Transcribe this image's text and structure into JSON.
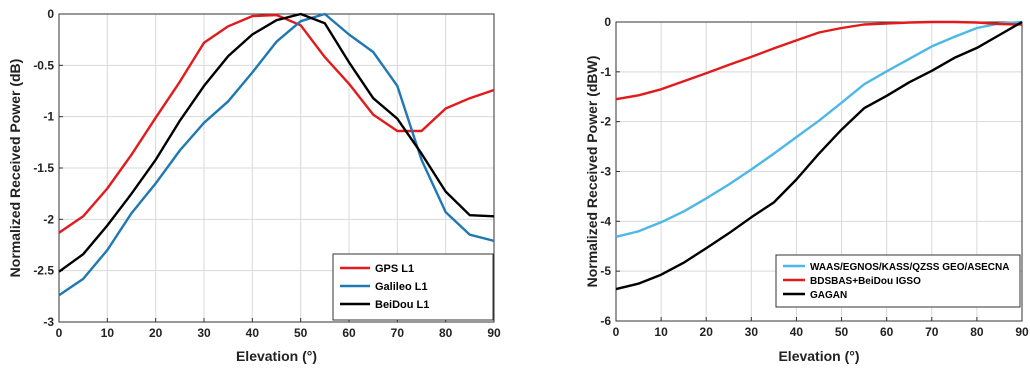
{
  "chart_data": [
    {
      "type": "line",
      "xlabel": "Elevation (°)",
      "ylabel": "Normalized Received Power (dB)",
      "xlim": [
        0,
        90
      ],
      "ylim": [
        -3,
        0
      ],
      "xticks": [
        "0",
        "10",
        "20",
        "30",
        "40",
        "50",
        "60",
        "70",
        "80",
        "90"
      ],
      "yticks": [
        "0",
        "-0.5",
        "-1",
        "-1.5",
        "-2",
        "-2.5",
        "-3"
      ],
      "grid": true,
      "legend_position": "bottom-right",
      "x": [
        0,
        5,
        10,
        15,
        20,
        25,
        30,
        35,
        40,
        45,
        50,
        55,
        60,
        65,
        70,
        75,
        80,
        85,
        90
      ],
      "series": [
        {
          "name": "GPS L1",
          "color": "#e31a1c",
          "values": [
            -2.13,
            -1.97,
            -1.7,
            -1.37,
            -1.01,
            -0.66,
            -0.28,
            -0.12,
            -0.02,
            -0.01,
            -0.11,
            -0.42,
            -0.68,
            -0.98,
            -1.14,
            -1.14,
            -0.92,
            -0.82,
            -0.74
          ]
        },
        {
          "name": "Galileo L1",
          "color": "#1f78b4",
          "values": [
            -2.74,
            -2.58,
            -2.3,
            -1.94,
            -1.65,
            -1.33,
            -1.06,
            -0.85,
            -0.57,
            -0.27,
            -0.07,
            0.0,
            -0.2,
            -0.37,
            -0.7,
            -1.42,
            -1.93,
            -2.15,
            -2.21
          ]
        },
        {
          "name": "BeiDou L1",
          "color": "#000000",
          "values": [
            -2.51,
            -2.34,
            -2.06,
            -1.75,
            -1.42,
            -1.04,
            -0.7,
            -0.41,
            -0.2,
            -0.06,
            0.0,
            -0.09,
            -0.47,
            -0.82,
            -1.02,
            -1.36,
            -1.73,
            -1.96,
            -1.97
          ]
        }
      ]
    },
    {
      "type": "line",
      "xlabel": "Elevation (°)",
      "ylabel": "Normalized Received Power (dBW)",
      "xlim": [
        0,
        90
      ],
      "ylim": [
        -6,
        0
      ],
      "xticks": [
        "0",
        "10",
        "20",
        "30",
        "40",
        "50",
        "60",
        "70",
        "80",
        "90"
      ],
      "yticks": [
        "0",
        "-1",
        "-2",
        "-3",
        "-4",
        "-5",
        "-6"
      ],
      "grid": true,
      "legend_position": "bottom-right",
      "x": [
        0,
        5,
        10,
        15,
        20,
        25,
        30,
        35,
        40,
        45,
        50,
        55,
        60,
        65,
        70,
        75,
        80,
        85,
        90
      ],
      "series": [
        {
          "name": "WAAS/EGNOS/KASS/QZSS GEO/ASECNA",
          "color": "#4db8e8",
          "values": [
            -4.31,
            -4.2,
            -4.02,
            -3.8,
            -3.54,
            -3.26,
            -2.96,
            -2.64,
            -2.31,
            -1.98,
            -1.62,
            -1.25,
            -0.99,
            -0.74,
            -0.49,
            -0.3,
            -0.12,
            -0.03,
            0.0
          ]
        },
        {
          "name": "BDSBAS+BeiDou IGSO",
          "color": "#e31a1c",
          "values": [
            -1.55,
            -1.47,
            -1.35,
            -1.19,
            -1.03,
            -0.86,
            -0.7,
            -0.53,
            -0.37,
            -0.21,
            -0.12,
            -0.05,
            -0.03,
            -0.01,
            0.0,
            0.0,
            -0.01,
            -0.04,
            -0.05
          ]
        },
        {
          "name": "GAGAN",
          "color": "#000000",
          "values": [
            -5.36,
            -5.25,
            -5.07,
            -4.83,
            -4.54,
            -4.24,
            -3.92,
            -3.62,
            -3.16,
            -2.64,
            -2.16,
            -1.73,
            -1.48,
            -1.21,
            -0.98,
            -0.72,
            -0.52,
            -0.26,
            0.0
          ]
        }
      ]
    }
  ]
}
